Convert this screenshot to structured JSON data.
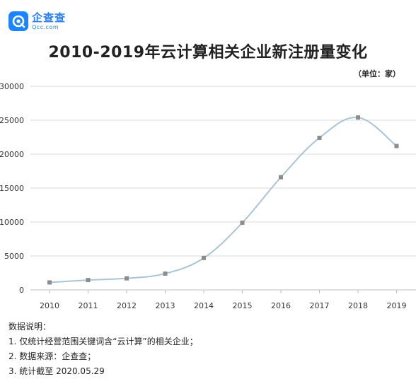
{
  "logo": {
    "name": "企查查",
    "url": "Qcc.com"
  },
  "unit_label": "（单位：家）",
  "notes": {
    "heading": "数据说明：",
    "items": [
      "1. 仅统计经营范围关键词含“云计算”的相关企业；",
      "2. 数据来源：企查查；",
      "3. 统计截至 2020.05.29"
    ]
  },
  "colors": {
    "line": "#a9c4d8",
    "marker": "#8c8c8c",
    "grid": "#d9d9d9",
    "brand": "#1a85ff"
  },
  "chart_data": {
    "type": "line",
    "title": "2010-2019年云计算相关企业新注册量变化",
    "xlabel": "",
    "ylabel": "",
    "categories": [
      "2010",
      "2011",
      "2012",
      "2013",
      "2014",
      "2015",
      "2016",
      "2017",
      "2018",
      "2019"
    ],
    "series": [
      {
        "values": [
          1100,
          1450,
          1700,
          2400,
          4700,
          9900,
          16600,
          22400,
          25400,
          21200
        ]
      }
    ],
    "ylim": [
      0,
      30000
    ],
    "yticks": [
      0,
      5000,
      10000,
      15000,
      20000,
      25000,
      30000
    ],
    "grid": true,
    "legend": "none"
  }
}
